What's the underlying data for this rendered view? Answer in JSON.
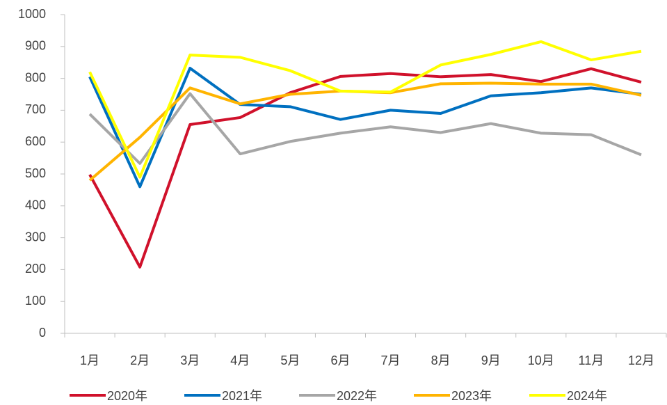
{
  "chart_data": {
    "type": "line",
    "categories": [
      "1月",
      "2月",
      "3月",
      "4月",
      "5月",
      "6月",
      "7月",
      "8月",
      "9月",
      "10月",
      "11月",
      "12月"
    ],
    "series": [
      {
        "name": "2020年",
        "color": "#d0112b",
        "values": [
          498,
          208,
          655,
          677,
          755,
          806,
          815,
          805,
          812,
          790,
          830,
          788
        ]
      },
      {
        "name": "2021年",
        "color": "#0070c0",
        "values": [
          805,
          460,
          832,
          718,
          711,
          671,
          700,
          690,
          745,
          755,
          770,
          750
        ]
      },
      {
        "name": "2022年",
        "color": "#a6a6a6",
        "values": [
          688,
          533,
          752,
          563,
          602,
          628,
          648,
          630,
          658,
          628,
          623,
          560
        ]
      },
      {
        "name": "2023年",
        "color": "#ffb400",
        "values": [
          480,
          615,
          770,
          720,
          750,
          760,
          755,
          783,
          785,
          782,
          782,
          747
        ]
      },
      {
        "name": "2024年",
        "color": "#ffff00",
        "values": [
          820,
          490,
          873,
          866,
          824,
          760,
          757,
          842,
          875,
          915,
          858,
          885
        ]
      }
    ],
    "ylim": [
      0,
      1000
    ],
    "yticks": [
      0,
      100,
      200,
      300,
      400,
      500,
      600,
      700,
      800,
      900,
      1000
    ],
    "grid": false
  }
}
